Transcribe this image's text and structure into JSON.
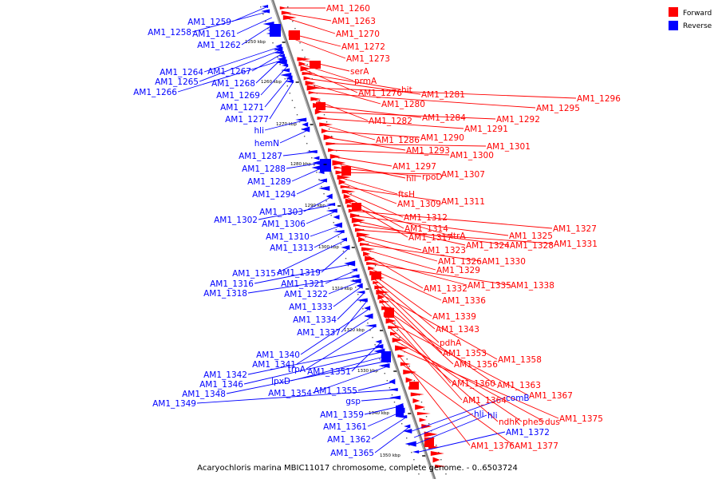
{
  "caption": "Acaryochloris marina MBIC11017 chromosome, complete genome. - 0..6503724",
  "legend": [
    {
      "label": "Forward",
      "color": "#ff0000"
    },
    {
      "label": "Reverse",
      "color": "#0000ff"
    }
  ],
  "colors": {
    "forward": "#ff0000",
    "reverse": "#0000ff",
    "backbone": "#7f7f7f"
  },
  "ticks": [
    {
      "label": "1250 kbp"
    },
    {
      "label": "1260 kbp"
    },
    {
      "label": "1270 kbp"
    },
    {
      "label": "1280 kbp"
    },
    {
      "label": "1290 kbp"
    },
    {
      "label": "1300 kbp"
    },
    {
      "label": "1310 kbp"
    },
    {
      "label": "1320 kbp"
    },
    {
      "label": "1330 kbp"
    },
    {
      "label": "1340 kbp"
    },
    {
      "label": "1350 kbp"
    }
  ],
  "reverse_genes": [
    "AM1_1259",
    "AM1_1258",
    "AM1_1261",
    "AM1_1262",
    "AM1_1264",
    "AM1_1267",
    "AM1_1265",
    "AM1_1268",
    "AM1_1266",
    "AM1_1269",
    "AM1_1271",
    "AM1_1277",
    "hli",
    "hemN",
    "AM1_1287",
    "AM1_1288",
    "AM1_1289",
    "AM1_1294",
    "AM1_1303",
    "AM1_1302",
    "AM1_1306",
    "AM1_1310",
    "AM1_1313",
    "AM1_1315",
    "AM1_1319",
    "AM1_1316",
    "AM1_1321",
    "AM1_1318",
    "AM1_1322",
    "AM1_1333",
    "AM1_1334",
    "AM1_1337",
    "AM1_1340",
    "AM1_1341",
    "trpA",
    "AM1_1351",
    "AM1_1342",
    "AM1_1346",
    "lpxD",
    "AM1_1348",
    "AM1_1354",
    "AM1_1355",
    "AM1_1349",
    "gsp",
    "AM1_1359",
    "AM1_1361",
    "AM1_1362",
    "AM1_1365",
    "comB",
    "hli",
    "hli",
    "AM1_1372"
  ],
  "forward_genes": [
    "AM1_1260",
    "AM1_1263",
    "AM1_1270",
    "AM1_1272",
    "AM1_1273",
    "serA",
    "prmA",
    "AM1_1276",
    "hit",
    "AM1_1281",
    "AM1_1280",
    "AM1_1296",
    "AM1_1295",
    "AM1_1282",
    "AM1_1284",
    "AM1_1292",
    "AM1_1291",
    "AM1_1286",
    "AM1_1290",
    "AM1_1293",
    "AM1_1301",
    "AM1_1300",
    "AM1_1297",
    "hli",
    "rpoD",
    "AM1_1307",
    "ftsH",
    "AM1_1309",
    "AM1_1311",
    "AM1_1312",
    "AM1_1314",
    "AM1_1317",
    "ltrA",
    "AM1_1327",
    "AM1_1325",
    "AM1_1324",
    "AM1_1328",
    "AM1_1331",
    "AM1_1323",
    "AM1_1326",
    "AM1_1330",
    "AM1_1329",
    "AM1_1332",
    "AM1_1335",
    "AM1_1338",
    "AM1_1336",
    "AM1_1339",
    "AM1_1343",
    "pdhA",
    "AM1_1353",
    "AM1_1358",
    "AM1_1356",
    "AM1_1360",
    "AM1_1363",
    "AM1_1364",
    "AM1_1367",
    "ndhK",
    "pheS",
    "dus",
    "AM1_1375",
    "AM1_1376",
    "AM1_1377"
  ]
}
